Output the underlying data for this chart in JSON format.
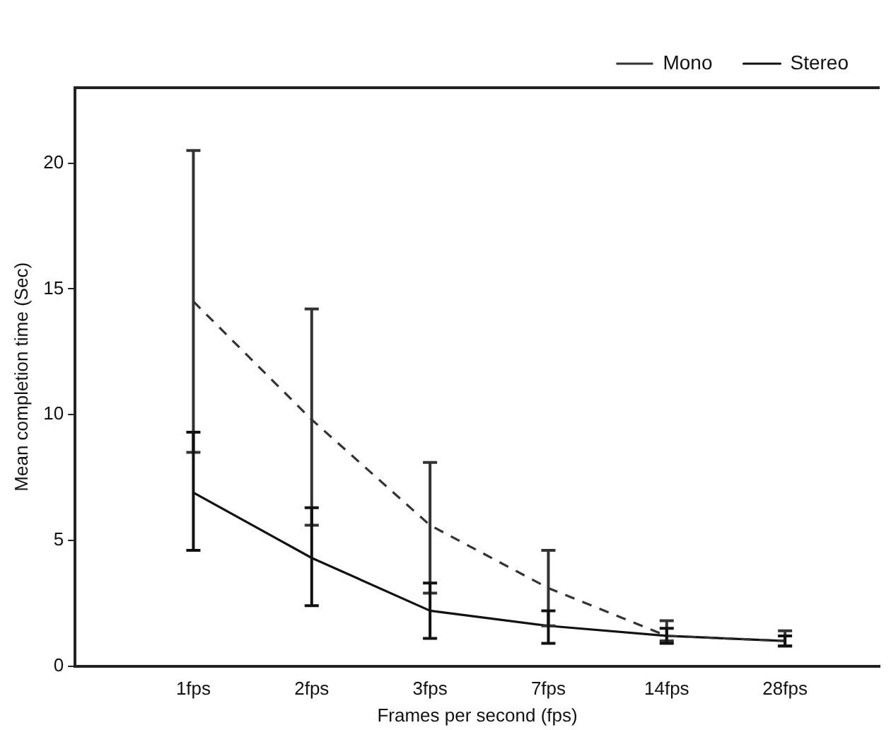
{
  "chart_data": {
    "type": "line",
    "xlabel": "Frames per second (fps)",
    "ylabel": "Mean completion time (Sec)",
    "categories": [
      "1fps",
      "2fps",
      "3fps",
      "7fps",
      "14fps",
      "28fps"
    ],
    "ylim": [
      0,
      23
    ],
    "yticks": [
      0,
      5,
      10,
      15,
      20
    ],
    "grid": false,
    "legend": "top right",
    "marker": "none",
    "series": [
      {
        "name": "Mono",
        "color": "#333333",
        "line_style": "dashed",
        "values": [
          14.5,
          9.8,
          5.6,
          3.1,
          1.2,
          1.0
        ],
        "errors": [
          [
            8.5,
            20.5
          ],
          [
            5.6,
            14.2
          ],
          [
            2.9,
            8.1
          ],
          [
            1.6,
            4.6
          ],
          [
            1.0,
            1.8
          ],
          [
            0.8,
            1.4
          ]
        ]
      },
      {
        "name": "Stereo",
        "color": "#111111",
        "line_style": "solid",
        "values": [
          6.9,
          4.3,
          2.2,
          1.6,
          1.2,
          1.0
        ],
        "errors": [
          [
            4.6,
            9.3
          ],
          [
            2.4,
            6.3
          ],
          [
            1.1,
            3.3
          ],
          [
            0.9,
            2.2
          ],
          [
            0.9,
            1.5
          ],
          [
            0.8,
            1.2
          ]
        ]
      }
    ]
  }
}
